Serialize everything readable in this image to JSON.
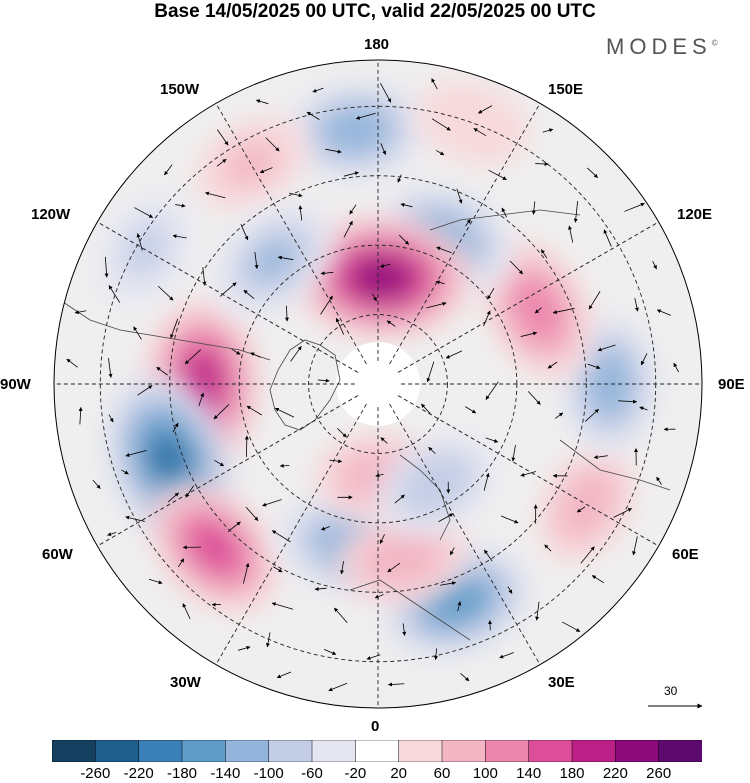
{
  "header": {
    "title": "Base 14/05/2025 00 UTC, valid 22/05/2025 00 UTC",
    "brand": "MODES"
  },
  "map": {
    "projection": "north-polar-stereographic",
    "longitude_labels": {
      "top": "180",
      "bottom": "0",
      "left": "90W",
      "right": "90E",
      "upper_left": "150W",
      "upper_right": "150E",
      "mid_upper_left": "120W",
      "mid_upper_right": "120E",
      "lower_left": "60W",
      "lower_right": "60E",
      "bottom_left": "30W",
      "bottom_right": "30E"
    },
    "wind_scale": {
      "value": "30"
    }
  },
  "colorbar": {
    "levels": [
      "-260",
      "-220",
      "-180",
      "-140",
      "-100",
      "-60",
      "-20",
      "20",
      "60",
      "100",
      "140",
      "180",
      "220",
      "260"
    ],
    "colors": [
      "#16405f",
      "#1f5f8e",
      "#3a7fb5",
      "#5f9cc8",
      "#93b5dc",
      "#c3cde6",
      "#e6e6f2",
      "#ffffff",
      "#f8d9dc",
      "#f3b6c4",
      "#ec86ad",
      "#dc4d9a",
      "#bc2086",
      "#8c0c7b",
      "#5c0a6e"
    ]
  },
  "anomalies": [
    {
      "name": "anomaly-pos-90w",
      "lon": -90,
      "lat": 52,
      "value": 200
    },
    {
      "name": "anomaly-neg-75w",
      "lon": -70,
      "lat": 42,
      "value": -220
    },
    {
      "name": "anomaly-pos-50w",
      "lon": -45,
      "lat": 40,
      "value": 150
    },
    {
      "name": "anomaly-neg-25w",
      "lon": -10,
      "lat": 55,
      "value": -130
    },
    {
      "name": "anomaly-pos-0",
      "lon": 0,
      "lat": 70,
      "value": 80
    },
    {
      "name": "anomaly-neg-20e",
      "lon": 20,
      "lat": 40,
      "value": -150
    },
    {
      "name": "anomaly-pos-10e",
      "lon": 8,
      "lat": 52,
      "value": 90
    },
    {
      "name": "anomaly-neg-30e",
      "lon": 30,
      "lat": 65,
      "value": -80
    },
    {
      "name": "anomaly-pos-60e",
      "lon": 60,
      "lat": 38,
      "value": 70
    },
    {
      "name": "anomaly-neg-90e",
      "lon": 90,
      "lat": 40,
      "value": -110
    },
    {
      "name": "anomaly-pos-120e",
      "lon": 115,
      "lat": 52,
      "value": 130
    },
    {
      "name": "anomaly-neg-150e",
      "lon": 155,
      "lat": 55,
      "value": -110
    },
    {
      "name": "anomaly-pos-180",
      "lon": 178,
      "lat": 67,
      "value": 230
    },
    {
      "name": "anomaly-neg-175w",
      "lon": -175,
      "lat": 35,
      "value": -120
    },
    {
      "name": "anomaly-pos-150w",
      "lon": -150,
      "lat": 35,
      "value": 60
    },
    {
      "name": "anomaly-neg-140w",
      "lon": -140,
      "lat": 55,
      "value": -100
    },
    {
      "name": "anomaly-pos-165e",
      "lon": 160,
      "lat": 30,
      "value": 50
    },
    {
      "name": "anomaly-neg-120w",
      "lon": -120,
      "lat": 32,
      "value": -60
    }
  ]
}
